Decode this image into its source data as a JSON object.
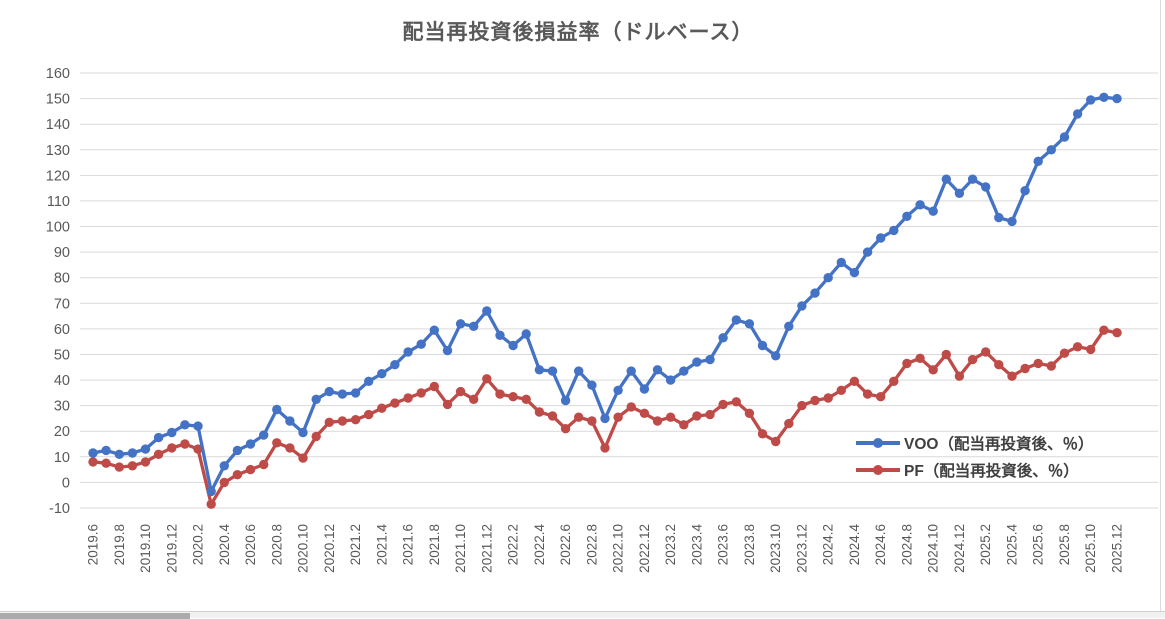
{
  "chart_data": {
    "type": "line",
    "title": "配当再投資後損益率（ドルベース）",
    "xlabel": "",
    "ylabel": "",
    "ylim": [
      -10,
      160
    ],
    "ytick_step": 10,
    "xtick_every": 2,
    "grid": "horizontal",
    "legend_position": "inside-right",
    "gridline_color": "#d9d9d9",
    "axis_text_color": "#595959",
    "categories": [
      "2019.6",
      "2019.7",
      "2019.8",
      "2019.9",
      "2019.10",
      "2019.11",
      "2019.12",
      "2020.1",
      "2020.2",
      "2020.3",
      "2020.4",
      "2020.5",
      "2020.6",
      "2020.7",
      "2020.8",
      "2020.9",
      "2020.10",
      "2020.11",
      "2020.12",
      "2021.1",
      "2021.2",
      "2021.3",
      "2021.4",
      "2021.5",
      "2021.6",
      "2021.7",
      "2021.8",
      "2021.9",
      "2021.10",
      "2021.11",
      "2021.12",
      "2022.1",
      "2022.2",
      "2022.3",
      "2022.4",
      "2022.5",
      "2022.6",
      "2022.7",
      "2022.8",
      "2022.9",
      "2022.10",
      "2022.11",
      "2022.12",
      "2023.1",
      "2023.2",
      "2023.3",
      "2023.4",
      "2023.5",
      "2023.6",
      "2023.7",
      "2023.8",
      "2023.9",
      "2023.10",
      "2023.11",
      "2023.12",
      "2024.1",
      "2024.2",
      "2024.3",
      "2024.4",
      "2024.5",
      "2024.6",
      "2024.7",
      "2024.8",
      "2024.9",
      "2024.10",
      "2024.11",
      "2024.12",
      "2025.1",
      "2025.2",
      "2025.3",
      "2025.4",
      "2025.5",
      "2025.6",
      "2025.7",
      "2025.8",
      "2025.9",
      "2025.10",
      "2025.11",
      "2025.12"
    ],
    "series": [
      {
        "name": "VOO（配当再投資後、％）",
        "color": "#4472C4",
        "values": [
          11.5,
          12.5,
          11,
          11.5,
          13,
          17.5,
          19.5,
          22.5,
          22,
          -3.5,
          6.5,
          12.5,
          15,
          18.5,
          28.5,
          24,
          19.5,
          32.5,
          35.5,
          34.5,
          35,
          39.5,
          42.5,
          46,
          51,
          54,
          59.5,
          51.5,
          62,
          61,
          67,
          57.5,
          53.5,
          58,
          44,
          43.5,
          32,
          43.5,
          38,
          25,
          36,
          43.5,
          36.5,
          44,
          40,
          43.5,
          47,
          48,
          56.5,
          63.5,
          62,
          53.5,
          49.5,
          61,
          69,
          74,
          80,
          86,
          82,
          90,
          95.5,
          98.5,
          104,
          108.5,
          106,
          118.5,
          113,
          118.5,
          115.5,
          103.5,
          102,
          114,
          125.5,
          130,
          135,
          144,
          149.5,
          150.5,
          150
        ]
      },
      {
        "name": "PF（配当再投資後、％）",
        "color": "#BE4B48",
        "values": [
          8,
          7.5,
          6,
          6.5,
          8,
          11,
          13.5,
          15,
          13,
          -8.5,
          0,
          3,
          5,
          7,
          15.5,
          13.5,
          9.5,
          18,
          23.5,
          24,
          24.5,
          26.5,
          29,
          31,
          33,
          35,
          37.5,
          30.5,
          35.5,
          32.5,
          40.5,
          34.5,
          33.5,
          32.5,
          27.5,
          26,
          21,
          25.5,
          24,
          13.5,
          25.5,
          29.5,
          27,
          24,
          25.5,
          22.5,
          26,
          26.5,
          30.5,
          31.5,
          27,
          19,
          16,
          23,
          30,
          32,
          33,
          36,
          39.5,
          34.5,
          33.5,
          39.5,
          46.5,
          48.5,
          44,
          50,
          41.5,
          48,
          51,
          46,
          41.5,
          44.5,
          46.5,
          45.5,
          50.5,
          53,
          52,
          59.5,
          58.5
        ]
      }
    ]
  }
}
